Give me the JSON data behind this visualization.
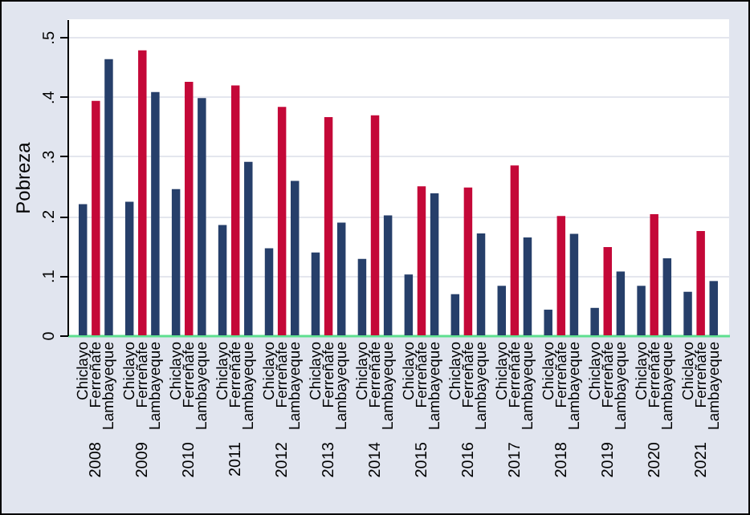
{
  "chart_data": {
    "type": "bar",
    "ylabel": "Pobreza",
    "categories": [
      "2008",
      "2009",
      "2010",
      "2011",
      "2012",
      "2013",
      "2014",
      "2015",
      "2016",
      "2017",
      "2018",
      "2019",
      "2020",
      "2021"
    ],
    "series": [
      {
        "name": "Chiclayo",
        "color": "#263f6a",
        "values": [
          0.22,
          0.224,
          0.245,
          0.185,
          0.146,
          0.139,
          0.128,
          0.102,
          0.069,
          0.083,
          0.043,
          0.046,
          0.083,
          0.073
        ]
      },
      {
        "name": "Ferreñafe",
        "color": "#c40838",
        "values": [
          0.393,
          0.478,
          0.425,
          0.419,
          0.383,
          0.366,
          0.369,
          0.25,
          0.248,
          0.285,
          0.2,
          0.148,
          0.203,
          0.175
        ]
      },
      {
        "name": "Lambayeque",
        "color": "#263f6a",
        "values": [
          0.463,
          0.408,
          0.398,
          0.291,
          0.259,
          0.189,
          0.201,
          0.238,
          0.171,
          0.164,
          0.17,
          0.107,
          0.129,
          0.091
        ]
      }
    ],
    "ylim": [
      0,
      0.53
    ],
    "yticks": [
      {
        "value": 0,
        "label": "0"
      },
      {
        "value": 0.1,
        "label": ".1"
      },
      {
        "value": 0.2,
        "label": ".2"
      },
      {
        "value": 0.3,
        "label": ".3"
      },
      {
        "value": 0.4,
        "label": ".4"
      },
      {
        "value": 0.5,
        "label": ".5"
      }
    ],
    "grid": "y"
  }
}
